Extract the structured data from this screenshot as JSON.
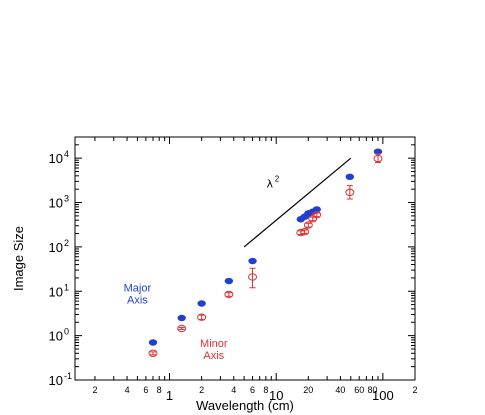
{
  "chart_data": {
    "type": "scatter",
    "xlabel": "Wavelength (cm)",
    "ylabel": "Image Size",
    "x_scale": "log",
    "y_scale": "log",
    "xlim": [
      0.13,
      200
    ],
    "ylim": [
      0.1,
      30000
    ],
    "x_major_ticks": [
      {
        "value": 1,
        "label": "1"
      },
      {
        "value": 10,
        "label": "10"
      },
      {
        "value": 100,
        "label": "100"
      }
    ],
    "x_minor_labels": [
      {
        "value": 0.2,
        "label": "2"
      },
      {
        "value": 0.4,
        "label": "4"
      },
      {
        "value": 0.6,
        "label": "6"
      },
      {
        "value": 0.8,
        "label": "8"
      },
      {
        "value": 2,
        "label": "2"
      },
      {
        "value": 4,
        "label": "4"
      },
      {
        "value": 6,
        "label": "6"
      },
      {
        "value": 8,
        "label": "8"
      },
      {
        "value": 20,
        "label": "20"
      },
      {
        "value": 40,
        "label": "40"
      },
      {
        "value": 60,
        "label": "60"
      },
      {
        "value": 80,
        "label": "80"
      },
      {
        "value": 200,
        "label": "2"
      }
    ],
    "y_ticks": [
      {
        "value": 0.1,
        "base": "10",
        "exp": "-1"
      },
      {
        "value": 1,
        "base": "10",
        "exp": "0"
      },
      {
        "value": 10,
        "base": "10",
        "exp": "1"
      },
      {
        "value": 100,
        "base": "10",
        "exp": "2"
      },
      {
        "value": 1000,
        "base": "10",
        "exp": "3"
      },
      {
        "value": 10000,
        "base": "10",
        "exp": "4"
      }
    ],
    "series": [
      {
        "color": "#1f3fd0",
        "marker": "filled-circle",
        "points": [
          {
            "x": 0.7,
            "y": 0.7
          },
          {
            "x": 1.3,
            "y": 2.5
          },
          {
            "x": 2.0,
            "y": 5.3
          },
          {
            "x": 3.6,
            "y": 17
          },
          {
            "x": 6.0,
            "y": 48
          },
          {
            "x": 17,
            "y": 420
          },
          {
            "x": 18.5,
            "y": 480
          },
          {
            "x": 20,
            "y": 570
          },
          {
            "x": 22,
            "y": 620
          },
          {
            "x": 24,
            "y": 700
          },
          {
            "x": 49,
            "y": 3800
          },
          {
            "x": 90,
            "y": 14000
          }
        ]
      },
      {
        "color": "#e03030",
        "marker": "open-circle",
        "points": [
          {
            "x": 0.7,
            "y": 0.4,
            "err_low": 0.37,
            "err_high": 0.43
          },
          {
            "x": 1.3,
            "y": 1.45,
            "err_low": 1.38,
            "err_high": 1.52
          },
          {
            "x": 2.0,
            "y": 2.6,
            "err_low": 2.3,
            "err_high": 2.9
          },
          {
            "x": 3.6,
            "y": 8.5,
            "err_low": 7.7,
            "err_high": 9.3
          },
          {
            "x": 6.0,
            "y": 21,
            "err_low": 12,
            "err_high": 33
          },
          {
            "x": 17,
            "y": 210,
            "err_low": 190,
            "err_high": 230
          },
          {
            "x": 18.5,
            "y": 220,
            "err_low": 200,
            "err_high": 240
          },
          {
            "x": 20,
            "y": 310,
            "err_low": 280,
            "err_high": 340
          },
          {
            "x": 22,
            "y": 430,
            "err_low": 390,
            "err_high": 470
          },
          {
            "x": 24,
            "y": 530,
            "err_low": 480,
            "err_high": 580
          },
          {
            "x": 49,
            "y": 1700,
            "err_low": 1200,
            "err_high": 2400
          },
          {
            "x": 90,
            "y": 9800,
            "err_low": 8000,
            "err_high": 12500
          }
        ]
      }
    ],
    "reference_line": {
      "label_base": "λ",
      "label_exp": "2",
      "x": [
        5,
        50
      ],
      "y": [
        100,
        10000
      ]
    },
    "annotations": [
      {
        "lines": [
          "Major",
          "Axis"
        ],
        "color": "#1f3fd0",
        "x": 0.5,
        "y": 10
      },
      {
        "lines": [
          "Minor",
          "Axis"
        ],
        "color": "#e03030",
        "x": 2.6,
        "y": 0.55
      }
    ]
  }
}
